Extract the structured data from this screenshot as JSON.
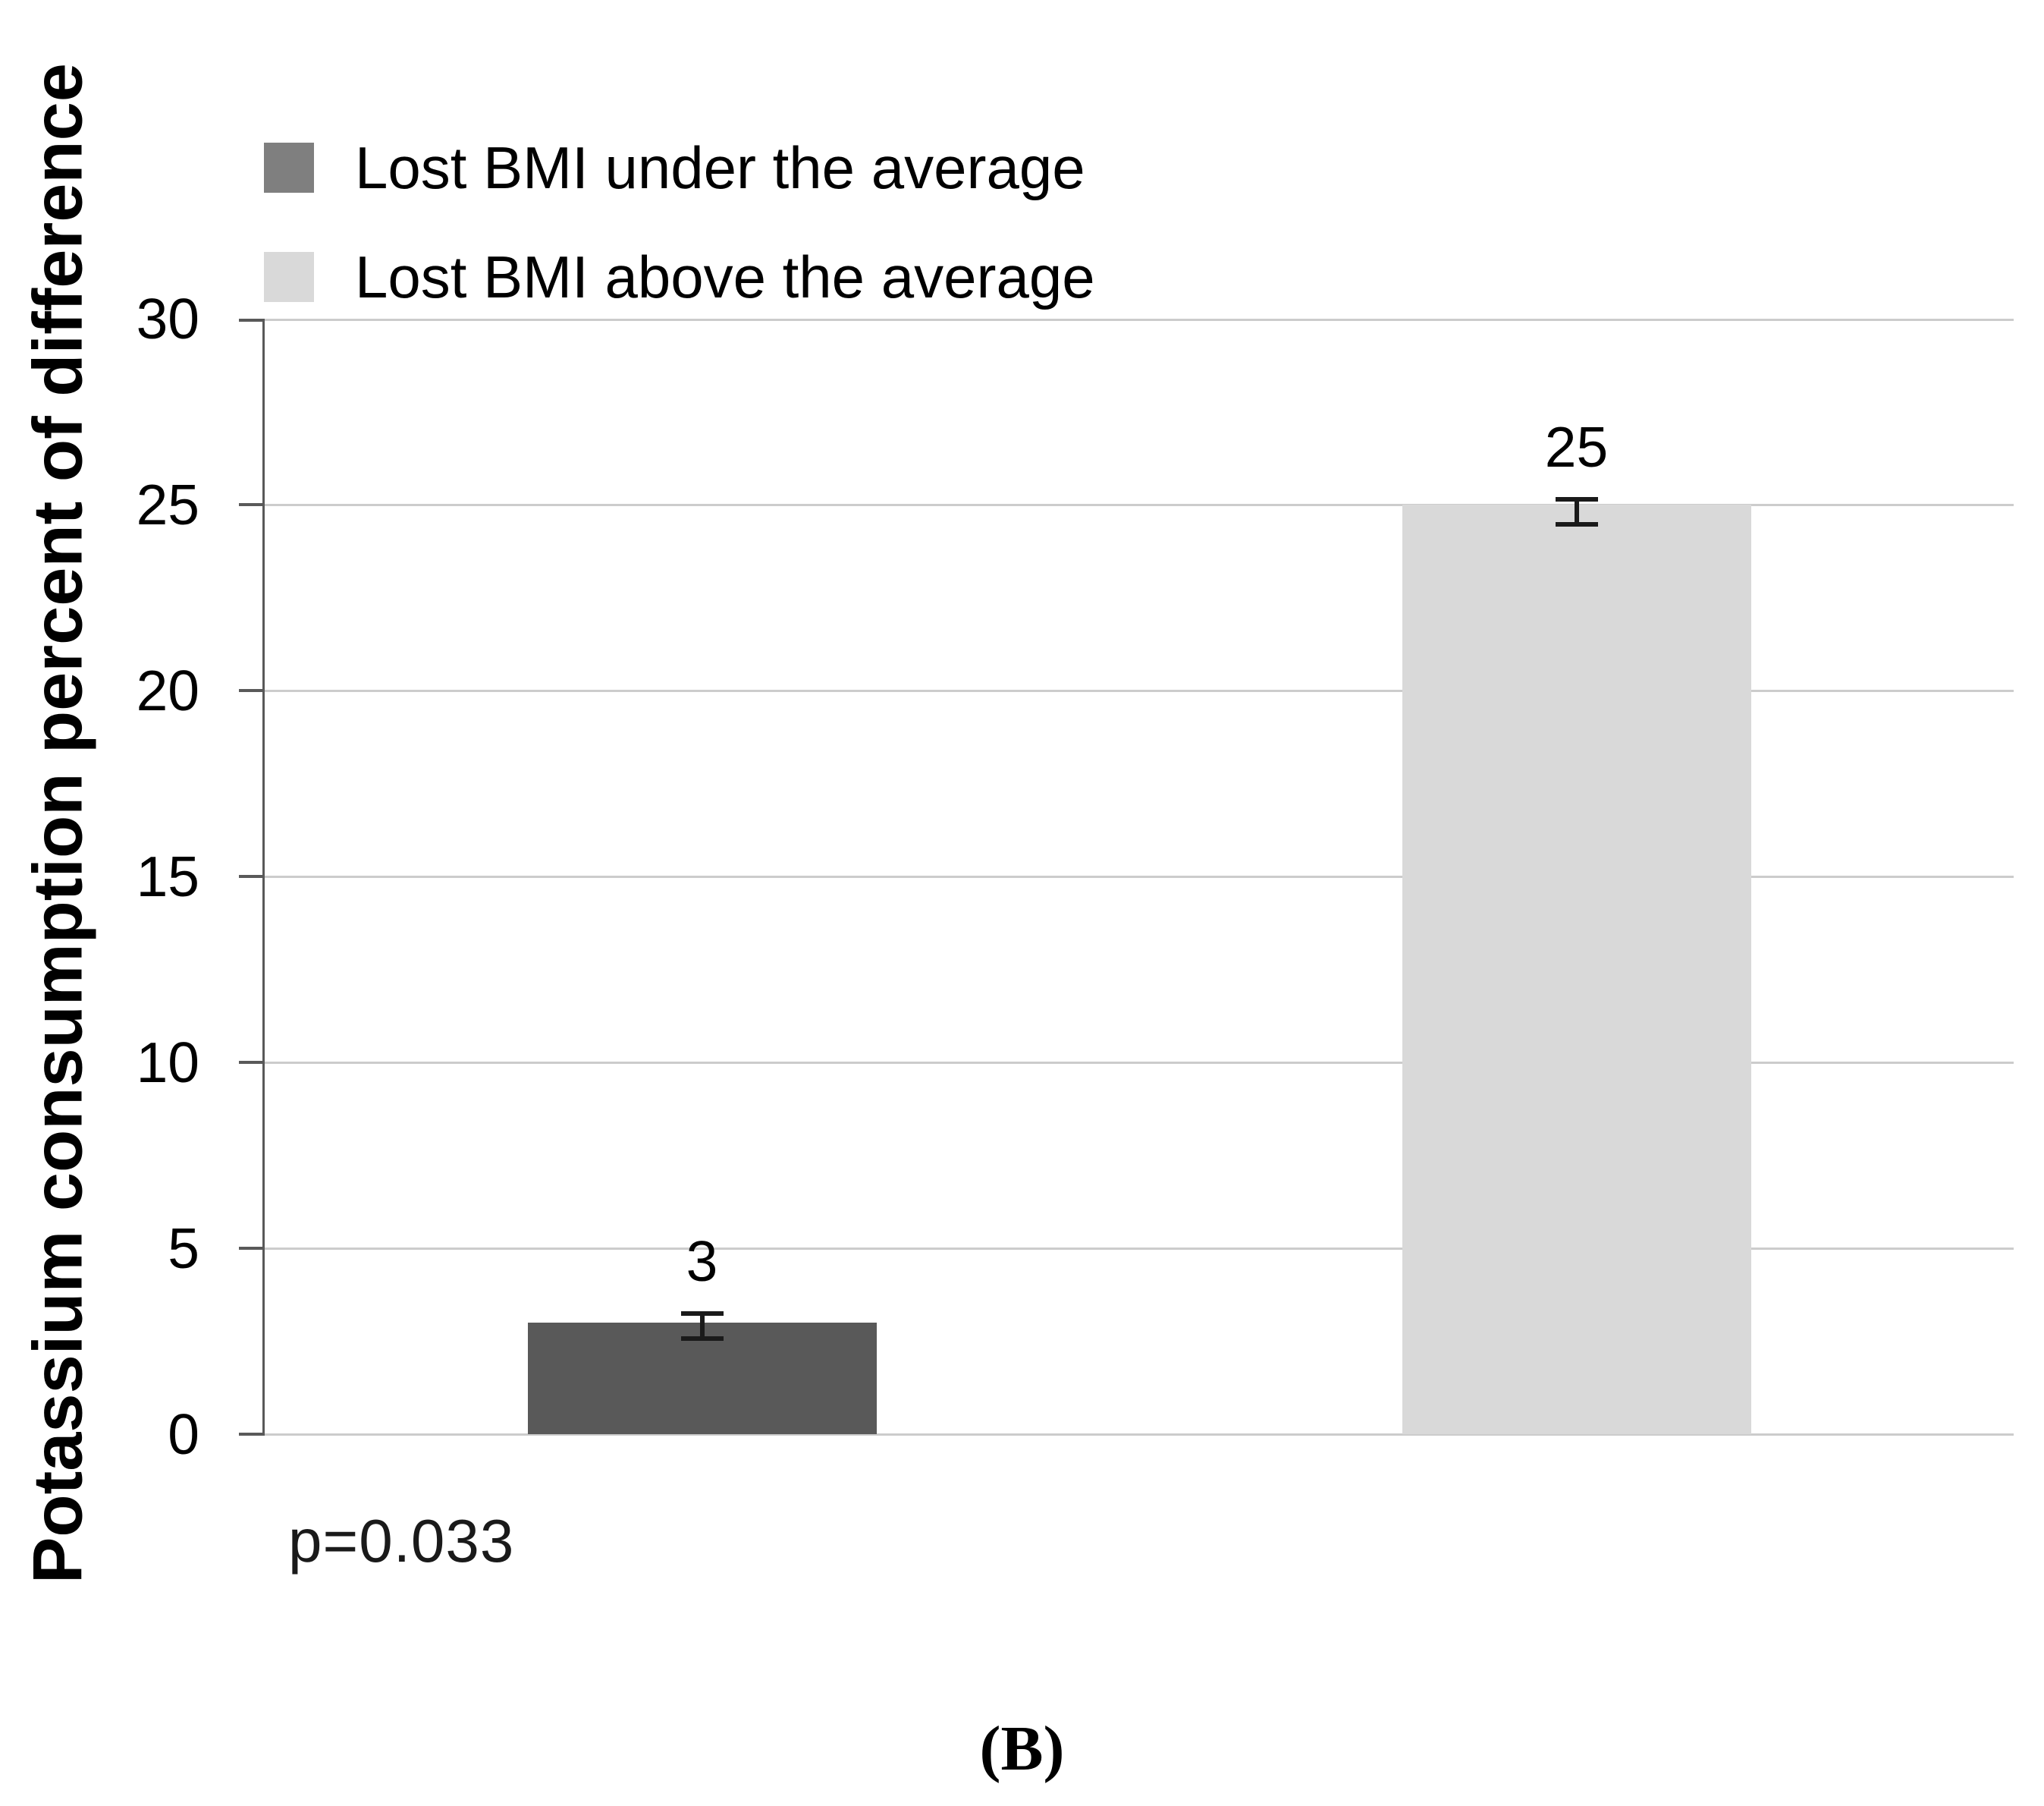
{
  "figure": {
    "caption": "(B)"
  },
  "chart_data": {
    "type": "bar",
    "title": "",
    "xlabel": "",
    "ylabel": "Potassium consumption percent of difference",
    "ylim": [
      0,
      30
    ],
    "yticks": [
      30,
      25,
      20,
      15,
      10,
      5,
      0
    ],
    "grid": true,
    "legend_position": "top-left",
    "categories": [
      "Lost BMI under the average",
      "Lost BMI above the average"
    ],
    "values": [
      3,
      25
    ],
    "data_labels": [
      "3",
      "25"
    ],
    "error_bars": [
      {
        "low": 2.5,
        "high": 3.3
      },
      {
        "low": 24.4,
        "high": 25.2
      }
    ],
    "bar_colors": [
      "#595959",
      "#d9d9d9"
    ],
    "legend_labels": [
      "Lost BMI under the average",
      "Lost BMI above the average"
    ],
    "legend_swatches": [
      "#7f7f7f",
      "#d9d9d9"
    ],
    "p_value_note": "p=0.033",
    "colors": {
      "axis": "#595959",
      "gridline": "#cccccc",
      "error_bar": "#1a1a1a",
      "background": "#ffffff"
    }
  }
}
